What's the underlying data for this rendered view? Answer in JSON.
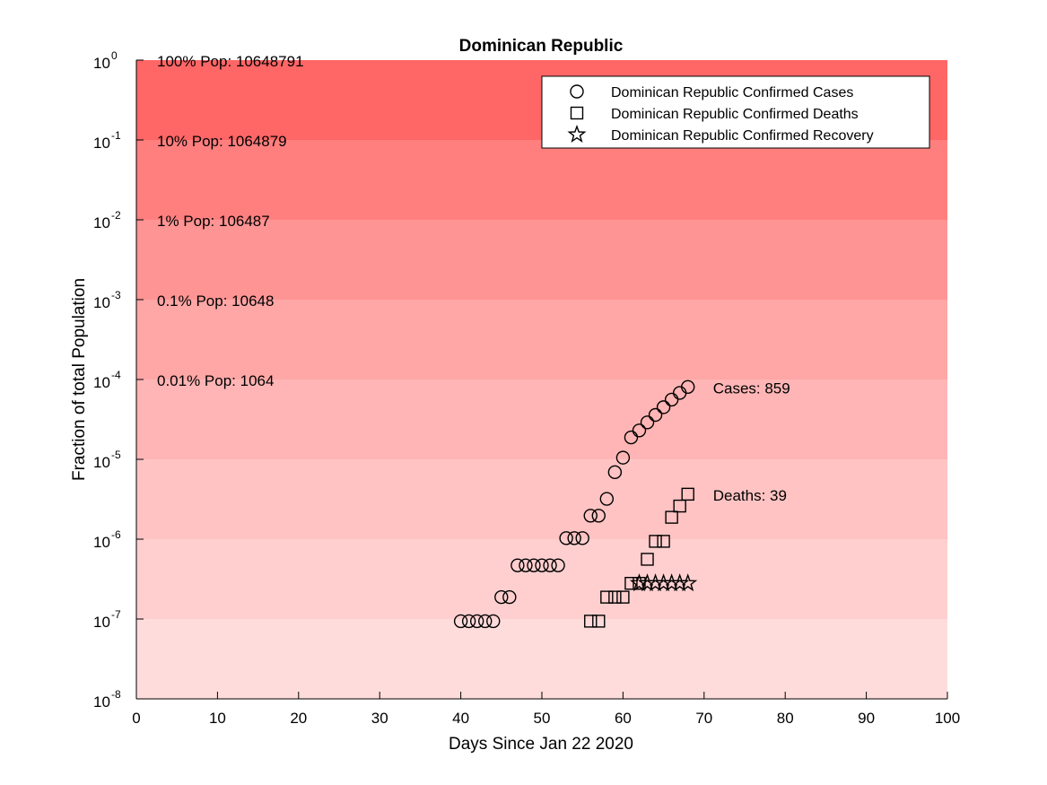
{
  "chart_data": {
    "type": "scatter",
    "title": "Dominican Republic",
    "xlabel": "Days Since Jan 22 2020",
    "ylabel": "Fraction of total Population",
    "xlim": [
      0,
      100
    ],
    "ylim": [
      1e-08,
      1
    ],
    "yscale": "log",
    "x_ticks": [
      "0",
      "10",
      "20",
      "30",
      "40",
      "50",
      "60",
      "70",
      "80",
      "90",
      "100"
    ],
    "y_tick_exponents": [
      "0",
      "-1",
      "-2",
      "-3",
      "-4",
      "-5",
      "-6",
      "-7",
      "-8"
    ],
    "population_bands": [
      {
        "label": "100% Pop: 10648791",
        "fraction": 1,
        "color": "#ff6666"
      },
      {
        "label": "10% Pop: 1064879",
        "fraction": 0.1,
        "color": "#ff7f7f"
      },
      {
        "label": "1% Pop: 106487",
        "fraction": 0.01,
        "color": "#ff9494"
      },
      {
        "label": "0.1% Pop: 10648",
        "fraction": 0.001,
        "color": "#ffa6a6"
      },
      {
        "label": "0.01% Pop: 1064",
        "fraction": 0.0001,
        "color": "#ffb5b5"
      },
      {
        "label": "",
        "fraction": 1e-05,
        "color": "#ffc3c3"
      },
      {
        "label": "",
        "fraction": 1e-06,
        "color": "#ffcfcf"
      },
      {
        "label": "",
        "fraction": 1e-07,
        "color": "#ffdcdc"
      }
    ],
    "legend_position": "top-right",
    "series": [
      {
        "name": "Dominican Republic Confirmed Cases",
        "marker": "circle",
        "end_label": "Cases: 859",
        "points": [
          [
            40,
            9.4e-08
          ],
          [
            41,
            9.4e-08
          ],
          [
            42,
            9.4e-08
          ],
          [
            43,
            9.4e-08
          ],
          [
            44,
            9.4e-08
          ],
          [
            45,
            1.88e-07
          ],
          [
            46,
            1.88e-07
          ],
          [
            47,
            4.7e-07
          ],
          [
            48,
            4.7e-07
          ],
          [
            49,
            4.7e-07
          ],
          [
            50,
            4.7e-07
          ],
          [
            51,
            4.7e-07
          ],
          [
            52,
            4.7e-07
          ],
          [
            53,
            1.03e-06
          ],
          [
            54,
            1.03e-06
          ],
          [
            55,
            1.03e-06
          ],
          [
            56,
            1.97e-06
          ],
          [
            57,
            1.97e-06
          ],
          [
            58,
            3.2e-06
          ],
          [
            59,
            6.9e-06
          ],
          [
            60,
            1.05e-05
          ],
          [
            61,
            1.88e-05
          ],
          [
            62,
            2.3e-05
          ],
          [
            63,
            2.9e-05
          ],
          [
            64,
            3.6e-05
          ],
          [
            65,
            4.5e-05
          ],
          [
            66,
            5.6e-05
          ],
          [
            67,
            6.8e-05
          ],
          [
            68,
            8.07e-05
          ]
        ]
      },
      {
        "name": "Dominican Republic Confirmed Deaths",
        "marker": "square",
        "end_label": "Deaths: 39",
        "points": [
          [
            56,
            9.4e-08
          ],
          [
            57,
            9.4e-08
          ],
          [
            58,
            1.88e-07
          ],
          [
            59,
            1.88e-07
          ],
          [
            60,
            1.88e-07
          ],
          [
            61,
            2.8e-07
          ],
          [
            62,
            2.8e-07
          ],
          [
            63,
            5.6e-07
          ],
          [
            64,
            9.4e-07
          ],
          [
            65,
            9.4e-07
          ],
          [
            66,
            1.88e-06
          ],
          [
            67,
            2.6e-06
          ],
          [
            68,
            3.66e-06
          ]
        ]
      },
      {
        "name": "Dominican Republic Confirmed Recovery",
        "marker": "star",
        "end_label": "",
        "points": [
          [
            62,
            2.8e-07
          ],
          [
            63,
            2.8e-07
          ],
          [
            64,
            2.8e-07
          ],
          [
            65,
            2.8e-07
          ],
          [
            66,
            2.8e-07
          ],
          [
            67,
            2.8e-07
          ],
          [
            68,
            2.8e-07
          ]
        ]
      }
    ]
  }
}
